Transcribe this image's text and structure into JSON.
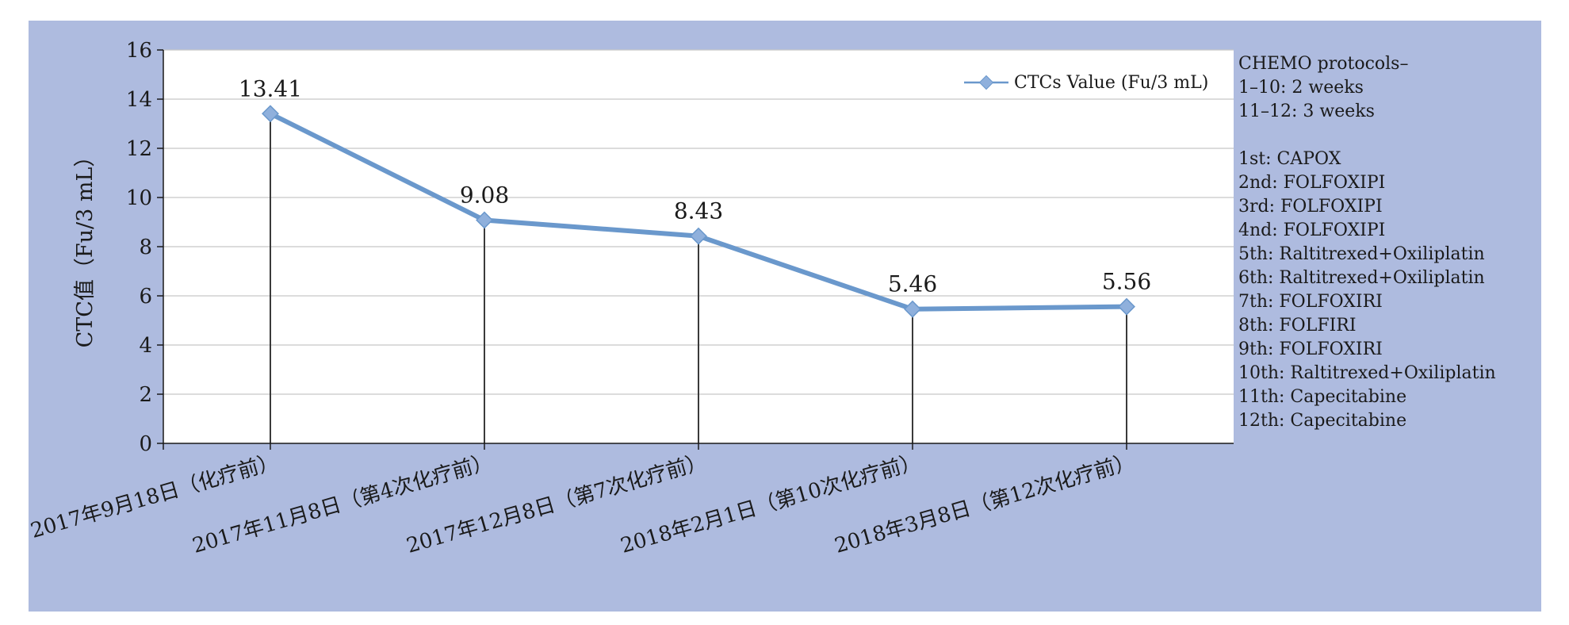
{
  "chart_data": {
    "type": "line",
    "title": "",
    "ylabel": "CTC值（Fu/3 mL）",
    "xlabel": "",
    "ylim": [
      0,
      16
    ],
    "yticks": [
      0,
      2,
      4,
      6,
      8,
      10,
      12,
      14,
      16
    ],
    "grid": true,
    "legend_position": "top-right",
    "categories": [
      "2017年9月18日（化疗前）",
      "2017年11月8日（第4次化疗前）",
      "2017年12月8日（第7次化疗前）",
      "2018年2月1日（第10次化疗前）",
      "2018年3月8日（第12次化疗前）"
    ],
    "series": [
      {
        "name": "CTCs Value (Fu/3 mL)",
        "values": [
          13.41,
          9.08,
          8.43,
          5.46,
          5.56
        ],
        "color": "#6a98cc"
      }
    ],
    "data_labels": [
      "13.41",
      "9.08",
      "8.43",
      "5.46",
      "5.56"
    ],
    "annotations": [
      "CHEMO protocols–",
      "1–10: 2 weeks",
      "11–12: 3 weeks",
      "",
      "1st: CAPOX",
      "2nd: FOLFOXIPI",
      "3rd: FOLFOXIPI",
      "4nd: FOLFOXIPI",
      "5th: Raltitrexed+Oxiliplatin",
      "6th: Raltitrexed+Oxiliplatin",
      "7th: FOLFOXIRI",
      "8th: FOLFIRI",
      "9th: FOLFOXIRI",
      "10th: Raltitrexed+Oxiliplatin",
      "11th: Capecitabine",
      "12th: Capecitabine"
    ]
  },
  "colors": {
    "background": "#aebbdf",
    "plot_area": "#ffffff",
    "gridline": "#c8c8c8",
    "drop_line": "#3a3a3a",
    "line": "#6a98cc"
  }
}
